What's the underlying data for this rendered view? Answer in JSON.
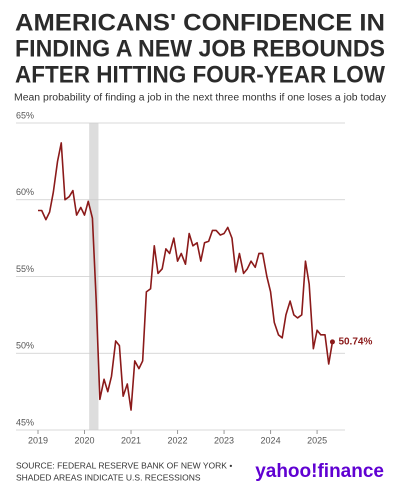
{
  "chart_data": {
    "type": "line",
    "title_lines": [
      "AMERICANS' CONFIDENCE IN",
      "FINDING A NEW JOB REBOUNDS",
      "AFTER HITTING FOUR-YEAR LOW"
    ],
    "subtitle": "Mean probability of finding a job in the next three months if one loses a job today",
    "x": [
      2019.0,
      2019.08,
      2019.17,
      2019.25,
      2019.33,
      2019.42,
      2019.5,
      2019.58,
      2019.67,
      2019.75,
      2019.83,
      2019.92,
      2020.0,
      2020.08,
      2020.17,
      2020.25,
      2020.33,
      2020.42,
      2020.5,
      2020.58,
      2020.67,
      2020.75,
      2020.83,
      2020.92,
      2021.0,
      2021.08,
      2021.17,
      2021.25,
      2021.33,
      2021.42,
      2021.5,
      2021.58,
      2021.67,
      2021.75,
      2021.83,
      2021.92,
      2022.0,
      2022.08,
      2022.17,
      2022.25,
      2022.33,
      2022.42,
      2022.5,
      2022.58,
      2022.67,
      2022.75,
      2022.83,
      2022.92,
      2023.0,
      2023.08,
      2023.17,
      2023.25,
      2023.33,
      2023.42,
      2023.5,
      2023.58,
      2023.67,
      2023.75,
      2023.83,
      2023.92,
      2024.0,
      2024.08,
      2024.17,
      2024.25,
      2024.33,
      2024.42,
      2024.5,
      2024.58,
      2024.67,
      2024.75,
      2024.83,
      2024.92,
      2025.0,
      2025.08,
      2025.17,
      2025.25,
      2025.33
    ],
    "series": [
      {
        "name": "Mean probability",
        "color": "#8b1a1a",
        "values": [
          59.3,
          59.3,
          58.7,
          59.2,
          60.5,
          62.5,
          63.7,
          60.0,
          60.2,
          60.6,
          59.0,
          59.5,
          59.0,
          59.9,
          58.8,
          53.5,
          47.0,
          48.3,
          47.5,
          48.5,
          50.8,
          50.5,
          47.2,
          48.0,
          46.3,
          49.5,
          49.0,
          49.5,
          54.0,
          54.2,
          57.0,
          55.2,
          55.5,
          56.8,
          56.5,
          57.5,
          56.0,
          56.5,
          55.8,
          57.8,
          57.0,
          57.2,
          56.0,
          57.2,
          57.3,
          58.0,
          58.0,
          57.7,
          57.8,
          58.2,
          57.5,
          55.3,
          56.5,
          55.2,
          55.5,
          56.0,
          55.6,
          56.5,
          56.5,
          55.0,
          54.0,
          52.0,
          51.2,
          51.0,
          52.5,
          53.4,
          52.5,
          52.3,
          52.5,
          56.0,
          54.5,
          50.3,
          51.5,
          51.2,
          51.2,
          49.3,
          50.74
        ],
        "last_label": "50.74%"
      }
    ],
    "shaded_ranges": [
      [
        2020.1,
        2020.3
      ]
    ],
    "shade_color": "#dddddd",
    "xlim": [
      2019.0,
      2025.6
    ],
    "xticks": [
      2019,
      2020,
      2021,
      2022,
      2023,
      2024,
      2025
    ],
    "ylim": [
      45,
      65
    ],
    "yticks": [
      {
        "value": 45,
        "label": "45%"
      },
      {
        "value": 50,
        "label": "50%"
      },
      {
        "value": 55,
        "label": "55%"
      },
      {
        "value": 60,
        "label": "60%"
      },
      {
        "value": 65,
        "label": "65%"
      }
    ],
    "grid": true,
    "source_lines": [
      "SOURCE: FEDERAL RESERVE BANK OF NEW YORK •",
      "SHADED AREAS INDICATE U.S. RECESSIONS"
    ],
    "logo": "yahoo!finance"
  }
}
